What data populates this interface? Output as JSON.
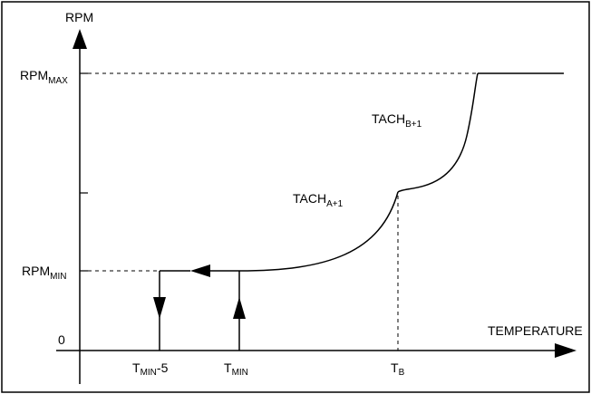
{
  "axes": {
    "y_label": "RPM",
    "x_label": "TEMPERATURE",
    "origin_label": "0"
  },
  "y_levels": {
    "rpm_max": {
      "base": "RPM",
      "sub": "MAX"
    },
    "rpm_min": {
      "base": "RPM",
      "sub": "MIN"
    }
  },
  "x_points": {
    "t_min_minus_5": {
      "base": "T",
      "sub": "MIN",
      "suffix": "-5"
    },
    "t_min": {
      "base": "T",
      "sub": "MIN"
    },
    "t_b": {
      "base": "T",
      "sub": "B"
    }
  },
  "curve_labels": {
    "tach_a": {
      "base": "TACH",
      "sub": "A+1"
    },
    "tach_b": {
      "base": "TACH",
      "sub": "B+1"
    }
  }
}
